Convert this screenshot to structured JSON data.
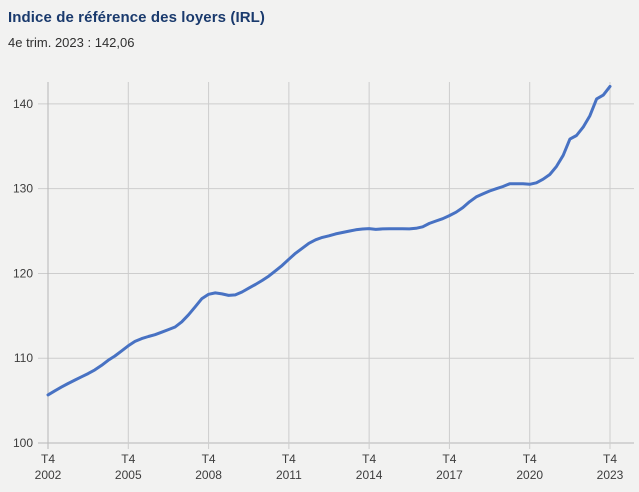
{
  "header": {
    "title": "Indice de référence des loyers (IRL)",
    "subtitle": "4e trim. 2023 : 142,06"
  },
  "colors": {
    "background": "#f2f2f1",
    "title": "#1a3a6d",
    "subtitle": "#303030",
    "series_line": "#4872c3",
    "grid_minor": "#cdcdcd",
    "grid_axis": "#b7b7b7",
    "tick_label": "#3d3d3d"
  },
  "chart_data": {
    "type": "line",
    "title": "Indice de référence des loyers (IRL)",
    "subtitle": "4e trim. 2023 : 142,06",
    "grid": true,
    "legend": false,
    "x_axis": {
      "frequency": "quarterly",
      "start": "T4 2002",
      "end": "T4 2023",
      "tick_quarter_indices": [
        0,
        12,
        24,
        36,
        48,
        60,
        72,
        84
      ],
      "tick_labels": [
        {
          "top": "T4",
          "bottom": "2002"
        },
        {
          "top": "T4",
          "bottom": "2005"
        },
        {
          "top": "T4",
          "bottom": "2008"
        },
        {
          "top": "T4",
          "bottom": "2011"
        },
        {
          "top": "T4",
          "bottom": "2014"
        },
        {
          "top": "T4",
          "bottom": "2017"
        },
        {
          "top": "T4",
          "bottom": "2020"
        },
        {
          "top": "T4",
          "bottom": "2023"
        }
      ]
    },
    "y_axis": {
      "ticks": [
        100,
        110,
        120,
        130,
        140
      ],
      "tick_labels": [
        "100",
        "110",
        "120",
        "130",
        "140"
      ],
      "min": 100,
      "max": 142.5
    },
    "series": [
      {
        "name": "IRL",
        "color": "#4872c3",
        "values": [
          105.67,
          106.14,
          106.59,
          107.02,
          107.42,
          107.81,
          108.19,
          108.62,
          109.15,
          109.75,
          110.26,
          110.86,
          111.47,
          111.98,
          112.32,
          112.56,
          112.77,
          113.07,
          113.37,
          113.68,
          114.3,
          115.12,
          116.07,
          117.03,
          117.54,
          117.7,
          117.59,
          117.41,
          117.47,
          117.81,
          118.26,
          118.7,
          119.17,
          119.69,
          120.31,
          120.95,
          121.68,
          122.37,
          122.96,
          123.55,
          123.97,
          124.25,
          124.44,
          124.66,
          124.83,
          125.0,
          125.15,
          125.24,
          125.29,
          125.19,
          125.25,
          125.26,
          125.28,
          125.26,
          125.25,
          125.33,
          125.5,
          125.9,
          126.19,
          126.46,
          126.82,
          127.22,
          127.77,
          128.45,
          129.03,
          129.38,
          129.72,
          129.99,
          130.26,
          130.57,
          130.57,
          130.59,
          130.52,
          130.69,
          131.12,
          131.67,
          132.62,
          133.93,
          135.84,
          136.27,
          137.26,
          138.61,
          140.59,
          141.03,
          142.06
        ]
      }
    ]
  }
}
